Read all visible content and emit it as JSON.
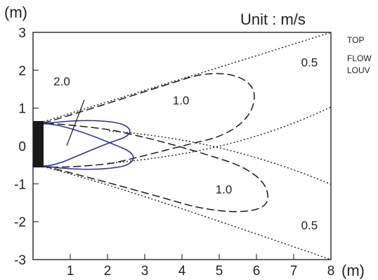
{
  "figure": {
    "unit_label": "Unit  : m/s",
    "y_unit": "(m)",
    "x_unit": "(m)",
    "side_label_lines": [
      "TOP",
      "FLOW",
      "LOUV"
    ],
    "x_ticks": [
      "1",
      "2",
      "3",
      "4",
      "5",
      "6",
      "7",
      "8"
    ],
    "y_ticks": [
      "3",
      "2",
      "1",
      "0",
      "-1",
      "-2",
      "-3"
    ],
    "contour_labels": [
      {
        "text": "2.0",
        "x": 0.55,
        "y": 1.6
      },
      {
        "text": "1.0",
        "x": 3.75,
        "y": 1.1
      },
      {
        "text": "1.0",
        "x": 4.9,
        "y": -1.25
      },
      {
        "text": "0.5",
        "x": 7.2,
        "y": 2.1
      },
      {
        "text": "0.5",
        "x": 7.2,
        "y": -2.2
      }
    ],
    "colors": {
      "contour_2_0": "#2e3192",
      "contour_1_0": "#1a1a1a",
      "contour_0_5": "#1a1a1a",
      "louver": "#1a1a1a",
      "axes": "#333333"
    }
  }
}
